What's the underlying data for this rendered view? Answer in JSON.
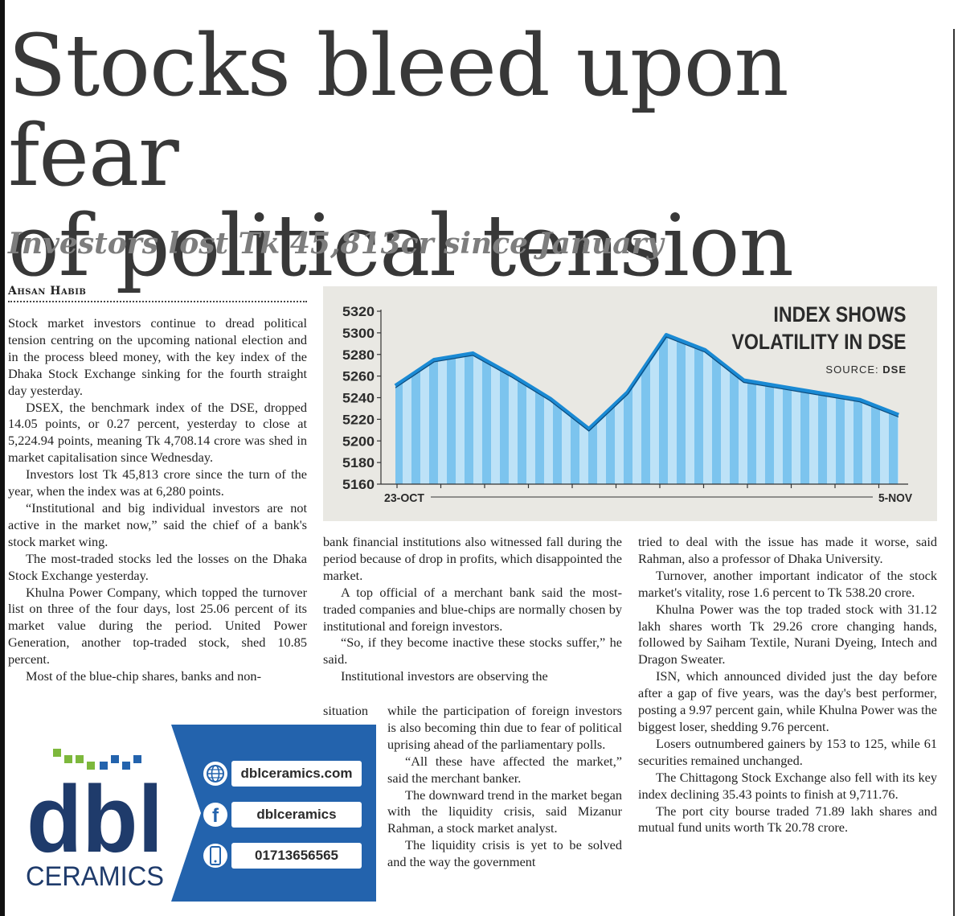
{
  "article": {
    "headline_line1": "Stocks bleed upon fear",
    "headline_line2": "of political tension",
    "subheadline": "Investors lost Tk 45,813cr since January",
    "byline": "Ahsan Habib"
  },
  "body": {
    "col1": [
      "Stock market investors continue to dread political tension centring on the upcoming national election and in the process bleed money, with the key index of the Dhaka Stock Exchange sinking for the fourth straight day yesterday.",
      "DSEX, the benchmark index of the DSE, dropped 14.05 points, or 0.27 percent, yesterday to close at 5,224.94 points, meaning Tk 4,708.14 crore was shed in market capitalisation since Wednesday.",
      "Investors lost Tk 45,813 crore since the turn of the year, when the index was at 6,280 points.",
      "“Institutional and big individual investors are not active in the market now,” said the chief of a bank's stock market wing.",
      "The most-traded stocks led the losses on the Dhaka Stock Exchange yesterday.",
      "Khulna Power Company, which topped the turnover list on three of the four days, lost 25.06 percent of its market value during the period. United Power Generation, another top-traded stock, shed 10.85 percent.",
      "Most of the blue-chip shares, banks and non-"
    ],
    "col2a": [
      "bank financial institutions also witnessed fall during the period because of drop in profits, which disappointed the market.",
      "A top official of a merchant bank said the most-traded companies and blue-chips are normally chosen by institutional and foreign investors.",
      "“So, if they become inactive these stocks suffer,” he said.",
      "Institutional investors are observing the"
    ],
    "col2_lead": "situation",
    "col2b": [
      "while the participation of foreign investors is also becoming thin due to fear of political uprising ahead of the parliamentary polls.",
      "“All these have affected the market,” said the merchant banker.",
      "The downward trend in the market began with the liquidity crisis, said Mizanur Rahman, a stock market analyst.",
      "The liquidity crisis is yet to be solved and the way the government"
    ],
    "col3": [
      "tried to deal with the issue has made it worse, said Rahman, also a professor of Dhaka University.",
      "Turnover, another important indicator of the stock market's vitality, rose 1.6 percent to Tk 538.20 crore.",
      "Khulna Power was the top traded stock with 31.12 lakh shares worth Tk 29.26 crore changing hands, followed by Saiham Textile, Nurani Dyeing, Intech and Dragon Sweater.",
      "ISN, which announced divided just the day before after a gap of five years, was the day's best performer, posting a 9.97 percent gain, while Khulna Power was the biggest loser, shedding 9.76 percent.",
      "Losers outnumbered gainers by 153 to 125, while 61 securities remained unchanged.",
      "The Chittagong Stock Exchange also fell with its key index declining 35.43 points to finish at 9,711.76.",
      "The port city bourse traded 71.89 lakh shares and mutual fund units worth Tk 20.78 crore."
    ]
  },
  "chart_data": {
    "type": "area",
    "title_line1": "INDEX SHOWS",
    "title_line2": "VOLATILITY IN DSE",
    "source_label": "SOURCE:",
    "source_value": "DSE",
    "x_start_label": "23-OCT",
    "x_end_label": "5-NOV",
    "ylim": [
      5160,
      5320
    ],
    "yticks": [
      "5320",
      "5300",
      "5280",
      "5260",
      "5240",
      "5220",
      "5200",
      "5180",
      "5160"
    ],
    "values": [
      5251,
      5275,
      5281,
      5261,
      5239,
      5211,
      5245,
      5298,
      5284,
      5256,
      5250,
      5244,
      5238,
      5224
    ],
    "colors": {
      "line": "#1a8ad4",
      "fill_dark": "#7cc4ee",
      "fill_light": "#bde2f7",
      "background": "#e9e8e3"
    }
  },
  "ad": {
    "logo_text": "dbl",
    "logo_sub": "CERAMICS",
    "website": "dblceramics.com",
    "facebook": "dblceramics",
    "phone": "01713656565",
    "colors": {
      "brand_blue": "#2363ad",
      "logo_navy": "#1f3b6b",
      "pixel_green": "#7db83c"
    }
  }
}
